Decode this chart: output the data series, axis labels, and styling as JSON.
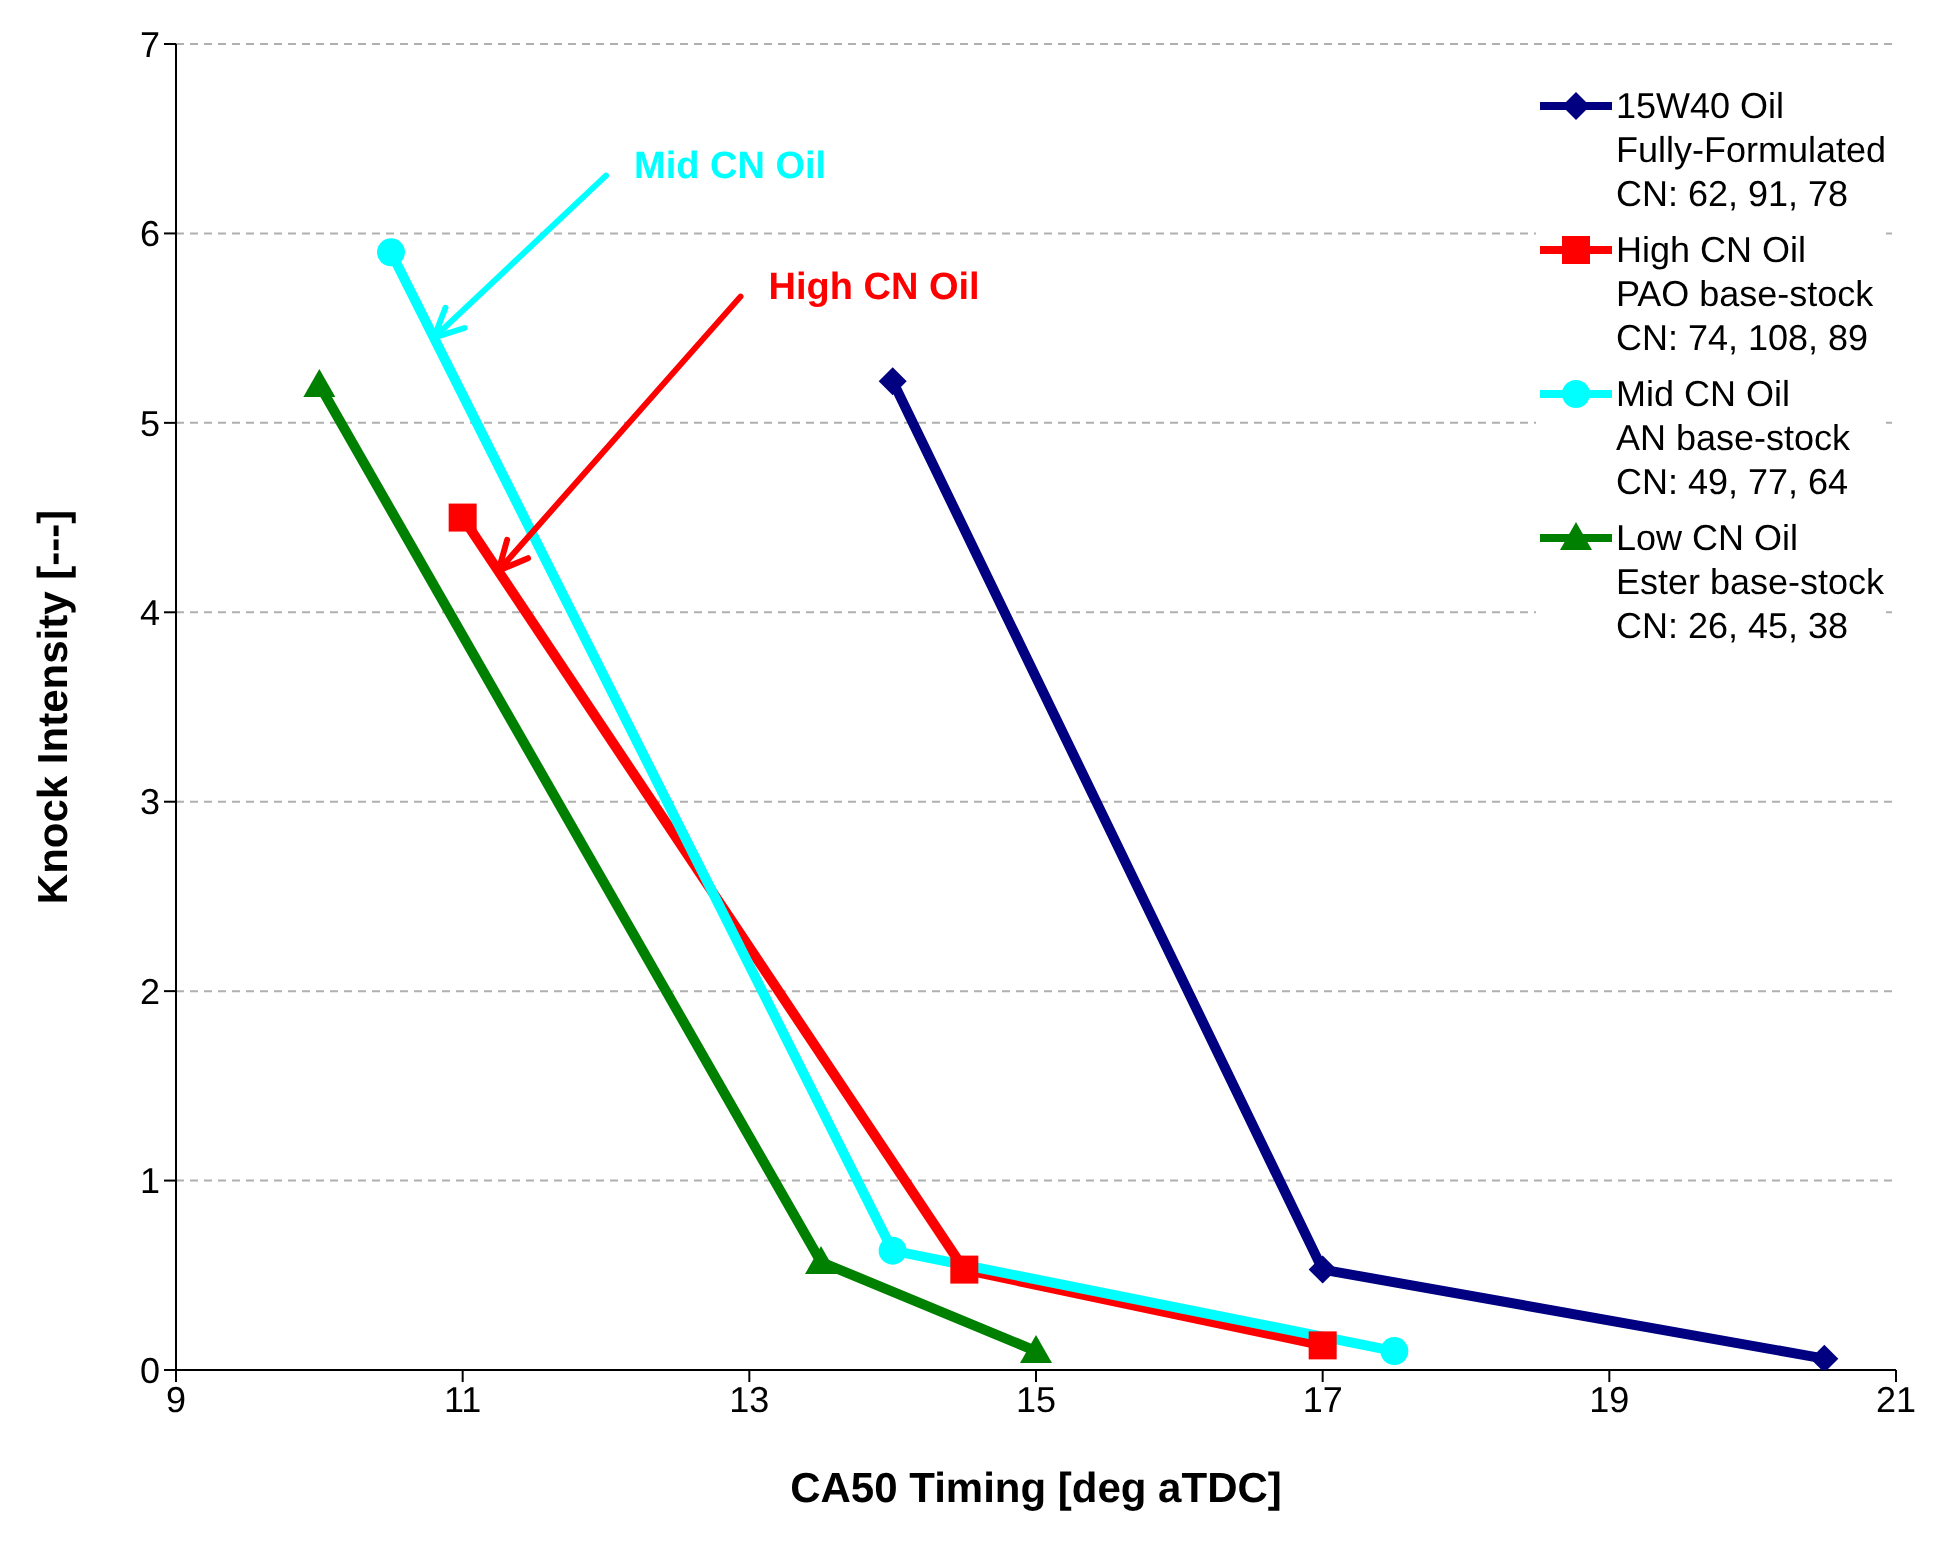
{
  "chart_data": {
    "type": "line",
    "xlabel": "CA50 Timing [deg aTDC]",
    "ylabel": "Knock Intensity [---]",
    "xlim": [
      9,
      21
    ],
    "xticks": [
      9,
      11,
      13,
      15,
      17,
      19,
      21
    ],
    "ylim": [
      0,
      7
    ],
    "yticks": [
      0,
      1,
      2,
      3,
      4,
      5,
      6,
      7
    ],
    "grid": "y",
    "legend": "top right",
    "annotations": [
      {
        "text": "Mid CN Oil",
        "x": 10.8,
        "y": 5.45
      },
      {
        "text": "High CN Oil",
        "x": 11.25,
        "y": 4.22
      }
    ],
    "series": [
      {
        "name": "15W40 Oil\nFully-Formulated\nCN: 62, 91, 78",
        "color": "#000080",
        "marker": "diamond",
        "x": [
          14,
          17,
          20.5
        ],
        "values": [
          5.22,
          0.53,
          0.06
        ]
      },
      {
        "name": "High CN Oil\nPAO base-stock\nCN: 74, 108, 89",
        "color": "#ff0000",
        "marker": "square",
        "x": [
          11,
          14.5,
          17
        ],
        "values": [
          4.5,
          0.53,
          0.13
        ]
      },
      {
        "name": "Mid CN Oil\nAN base-stock\nCN: 49, 77, 64",
        "color": "#00ffff",
        "marker": "circle",
        "x": [
          10.5,
          14,
          17.5
        ],
        "values": [
          5.9,
          0.63,
          0.1
        ]
      },
      {
        "name": "Low CN Oil\nEster base-stock\nCN: 26, 45, 38",
        "color": "#008000",
        "marker": "triangle",
        "x": [
          10,
          13.5,
          15
        ],
        "values": [
          5.2,
          0.57,
          0.1
        ]
      }
    ]
  }
}
